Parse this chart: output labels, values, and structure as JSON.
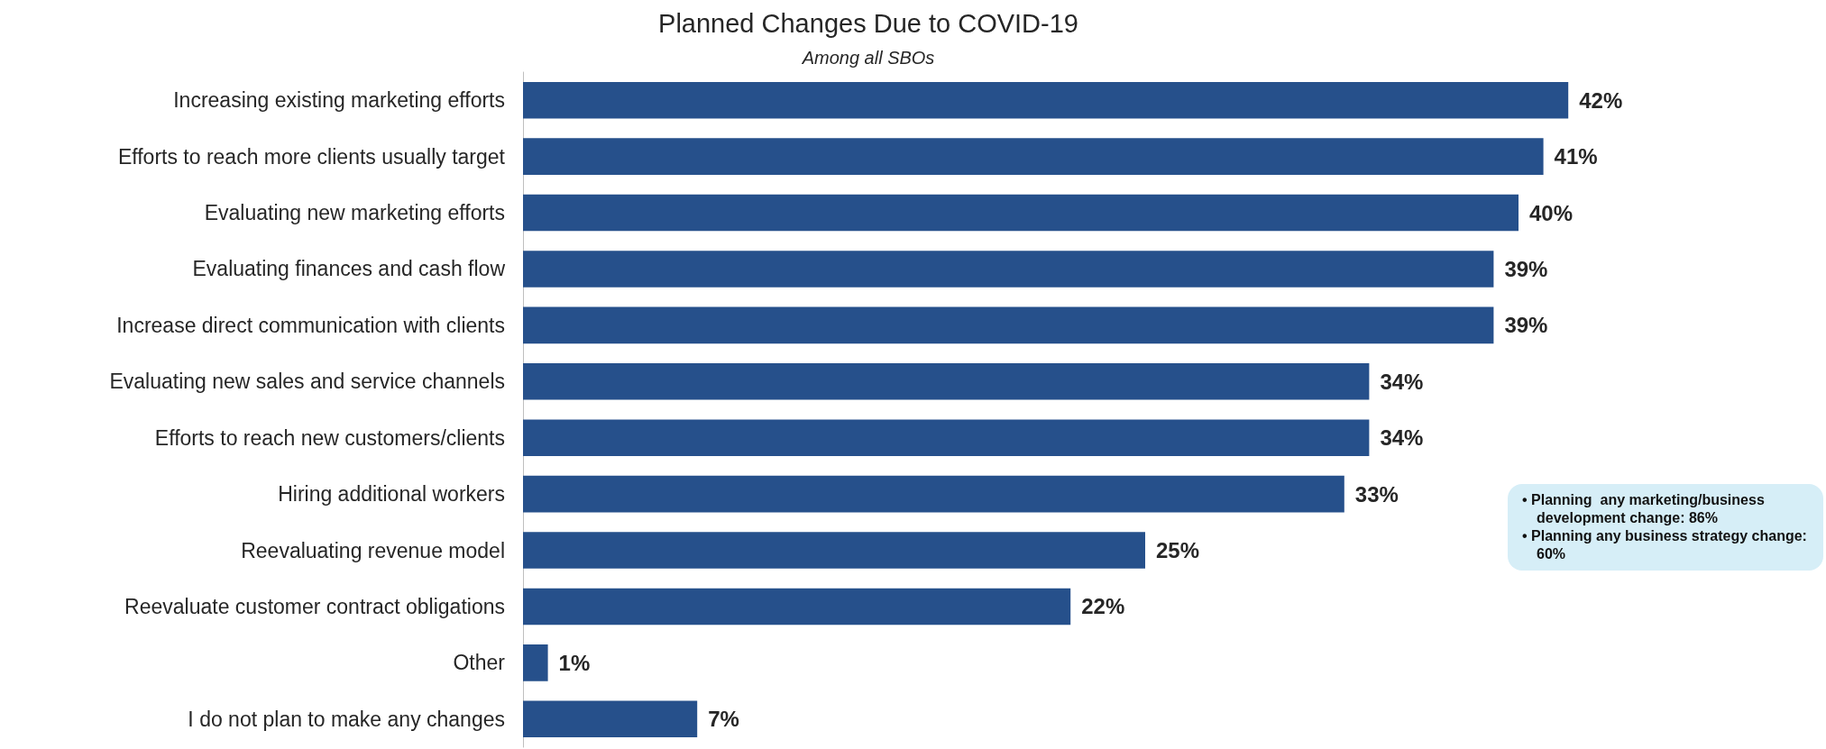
{
  "chart_data": {
    "type": "bar",
    "orientation": "horizontal",
    "title": "Planned Changes Due to COVID-19",
    "subtitle": "Among all SBOs",
    "categories": [
      "Increasing existing marketing efforts",
      "Efforts to reach more clients usually target",
      "Evaluating new marketing efforts",
      "Evaluating finances and cash flow",
      "Increase direct communication with clients",
      "Evaluating new sales and service channels",
      "Efforts to reach new customers/clients",
      "Hiring additional workers",
      "Reevaluating revenue model",
      "Reevaluate customer contract obligations",
      "Other",
      "I do not plan to make any changes"
    ],
    "values": [
      42,
      41,
      40,
      39,
      39,
      34,
      34,
      33,
      25,
      22,
      1,
      7
    ],
    "value_labels": [
      "42%",
      "41%",
      "40%",
      "39%",
      "39%",
      "34%",
      "34%",
      "33%",
      "25%",
      "22%",
      "1%",
      "7%"
    ],
    "color": "#26508b",
    "annotations": [
      "• Planning  any marketing/business development change: 86%",
      "• Planning any business strategy change: 60%"
    ]
  }
}
